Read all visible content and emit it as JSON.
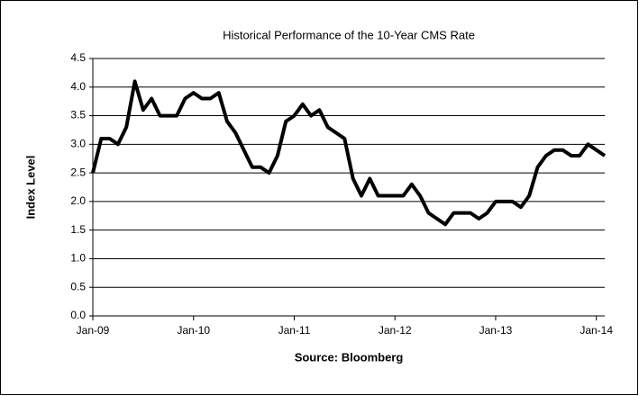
{
  "chart_data": {
    "type": "line",
    "title": "Historical Performance of the 10-Year CMS Rate",
    "x_label": "Source: Bloomberg",
    "y_label": "Index Level",
    "categories": [
      "Jan-09",
      null,
      null,
      null,
      null,
      null,
      null,
      null,
      null,
      null,
      null,
      null,
      "Jan-10",
      null,
      null,
      null,
      null,
      null,
      null,
      null,
      null,
      null,
      null,
      null,
      "Jan-11",
      null,
      null,
      null,
      null,
      null,
      null,
      null,
      null,
      null,
      null,
      null,
      "Jan-12",
      null,
      null,
      null,
      null,
      null,
      null,
      null,
      null,
      null,
      null,
      null,
      "Jan-13",
      null,
      null,
      null,
      null,
      null,
      null,
      null,
      null,
      null,
      null,
      null,
      "Jan-14",
      null
    ],
    "values": [
      2.5,
      3.1,
      3.1,
      3.0,
      3.3,
      4.1,
      3.6,
      3.8,
      3.5,
      3.5,
      3.5,
      3.8,
      3.9,
      3.8,
      3.8,
      3.9,
      3.4,
      3.2,
      2.9,
      2.6,
      2.6,
      2.5,
      2.8,
      3.4,
      3.5,
      3.7,
      3.5,
      3.6,
      3.3,
      3.2,
      3.1,
      2.4,
      2.1,
      2.4,
      2.1,
      2.1,
      2.1,
      2.1,
      2.3,
      2.1,
      1.8,
      1.7,
      1.6,
      1.8,
      1.8,
      1.8,
      1.7,
      1.8,
      2.0,
      2.0,
      2.0,
      1.9,
      2.1,
      2.6,
      2.8,
      2.9,
      2.9,
      2.8,
      2.8,
      3.0,
      2.9,
      2.8
    ],
    "color": "#000000",
    "ylim": [
      0,
      4.5
    ],
    "yticks": [
      {
        "value": 0,
        "label": "0.0"
      },
      {
        "value": 0.5,
        "label": "0.5"
      },
      {
        "value": 1,
        "label": "1.0"
      },
      {
        "value": 1.5,
        "label": "1.5"
      },
      {
        "value": 2,
        "label": "2.0"
      },
      {
        "value": 2.5,
        "label": "2.5"
      },
      {
        "value": 3,
        "label": "3.0"
      },
      {
        "value": 3.5,
        "label": "3.5"
      },
      {
        "value": 4,
        "label": "4.0"
      },
      {
        "value": 4.5,
        "label": "4.5"
      }
    ],
    "grid": true
  }
}
